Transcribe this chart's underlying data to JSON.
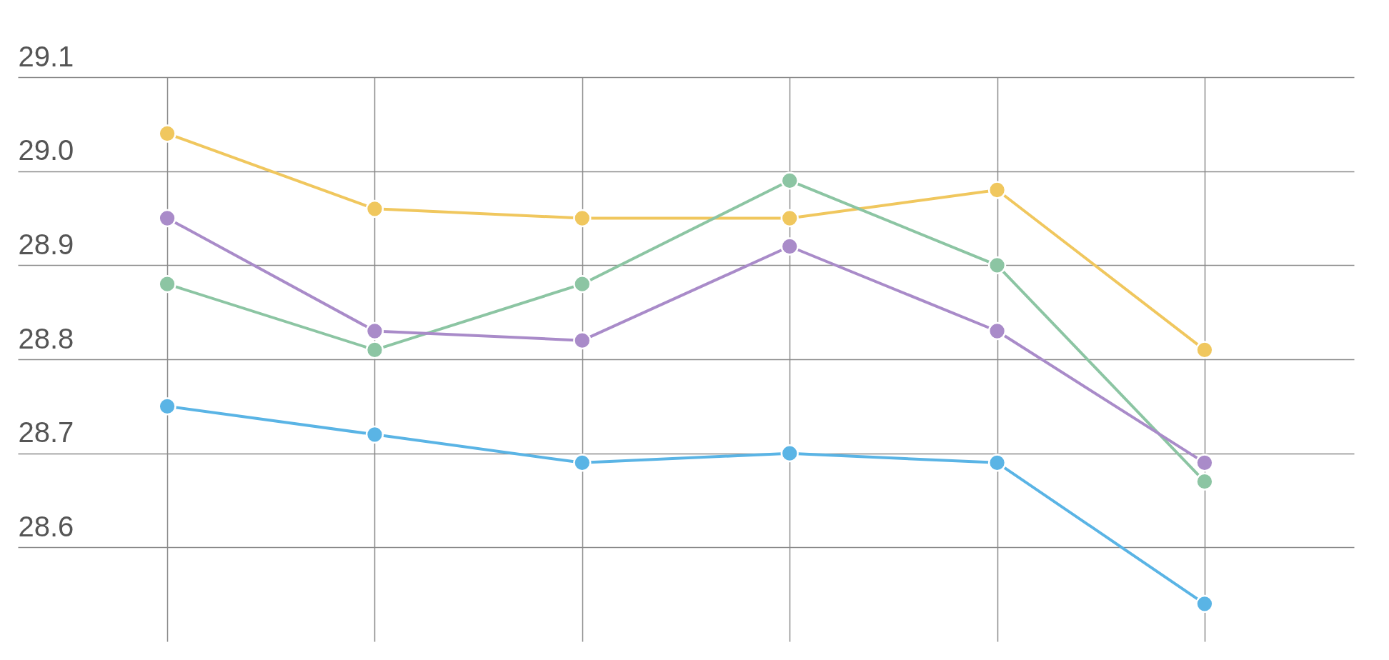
{
  "chart_data": {
    "type": "line",
    "categories": [
      null,
      null,
      null,
      null,
      null,
      null
    ],
    "series": [
      {
        "color": "#f0c75e",
        "values": [
          29.04,
          28.96,
          28.95,
          28.95,
          28.98,
          28.81
        ]
      },
      {
        "color": "#8cc5a3",
        "values": [
          28.88,
          28.81,
          28.88,
          28.99,
          28.9,
          28.67
        ]
      },
      {
        "color": "#a98bc9",
        "values": [
          28.95,
          28.83,
          28.82,
          28.92,
          28.83,
          28.69
        ]
      },
      {
        "color": "#5ab4e5",
        "values": [
          28.75,
          28.72,
          28.69,
          28.7,
          28.69,
          28.54
        ]
      }
    ],
    "ylim": [
      28.5,
      29.1
    ],
    "yticks": [
      28.6,
      28.7,
      28.8,
      28.9,
      {
        "value": 29,
        "label": "29.0"
      },
      29.1
    ],
    "grid": true,
    "marker": "circle",
    "line_style": "solid",
    "tick_labels": "y"
  }
}
